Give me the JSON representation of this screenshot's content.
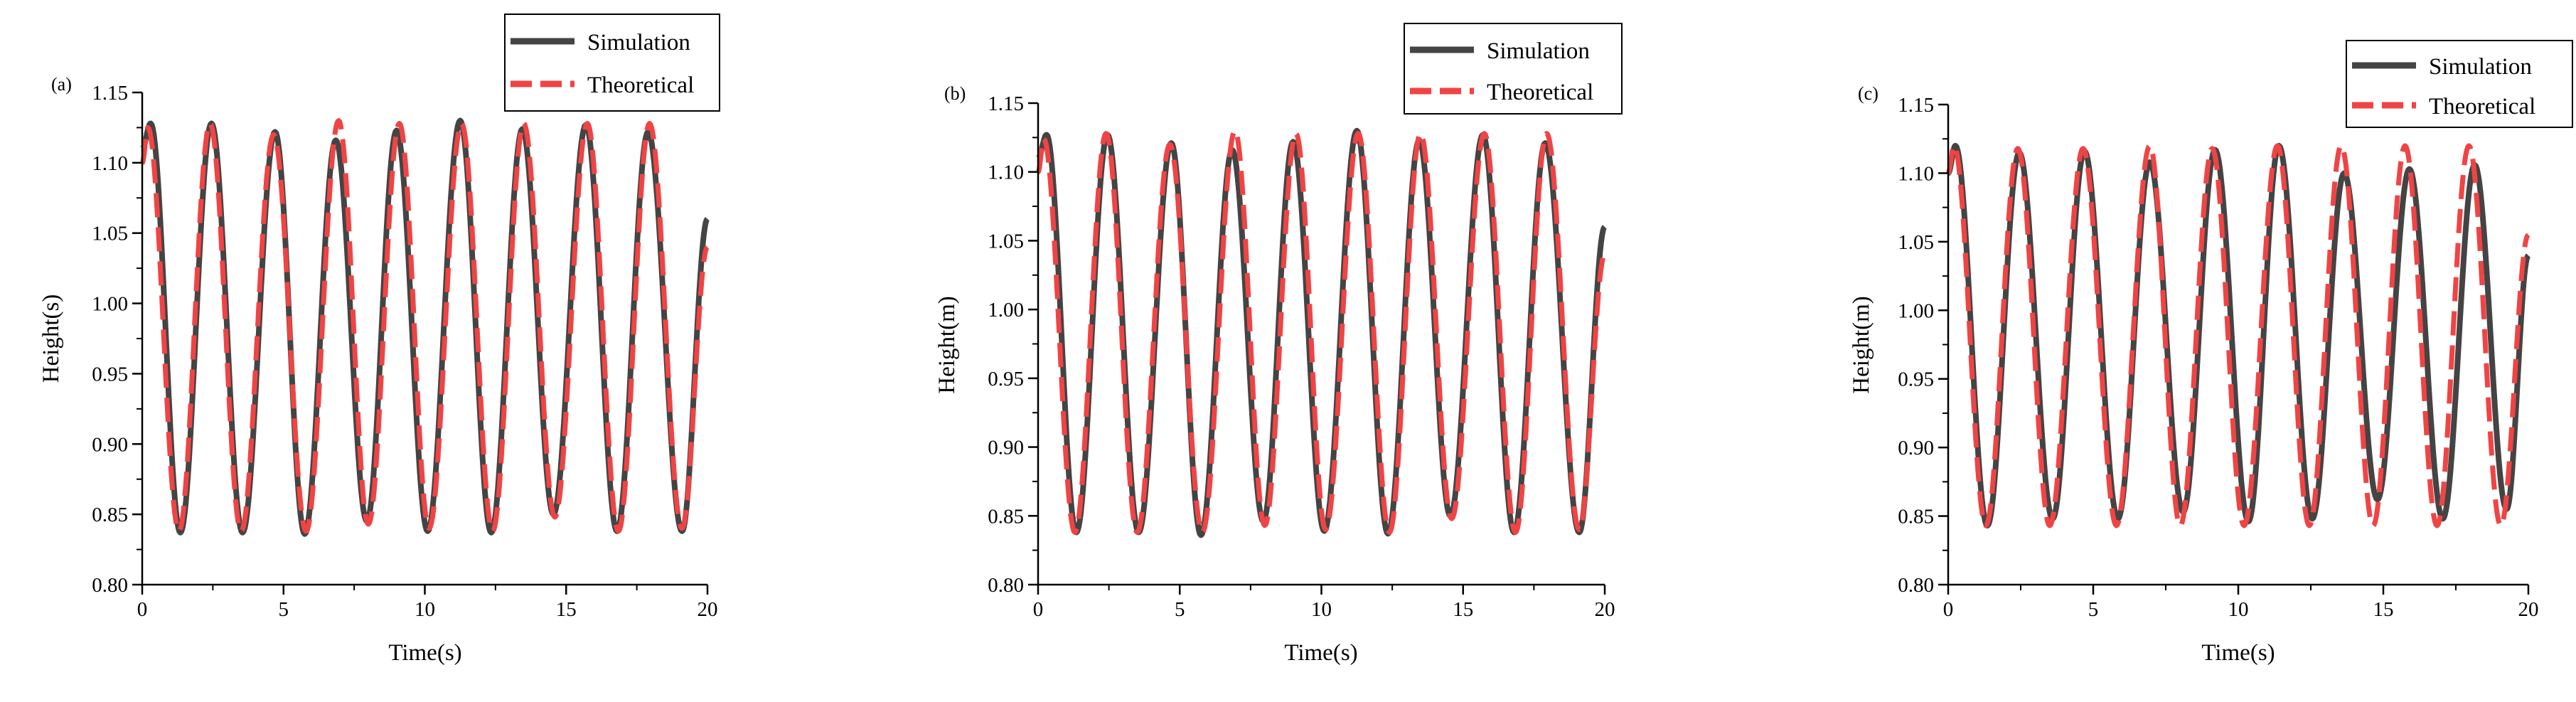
{
  "figure": {
    "series_names": [
      "Simulation",
      "Theoretical"
    ],
    "colors": {
      "simulation": "#444444",
      "theoretical": "#f04444",
      "axis": "#000000",
      "background": "#ffffff"
    }
  },
  "chart_data": [
    {
      "type": "line",
      "panel_label": "(a)",
      "title": "",
      "xlabel": "Time(s)",
      "ylabel": "Height(s)",
      "xlim": [
        0,
        20
      ],
      "ylim": [
        0.8,
        1.15
      ],
      "xticks": [
        0,
        5,
        10,
        15,
        20
      ],
      "yticks": [
        0.8,
        0.85,
        0.9,
        0.95,
        1.0,
        1.05,
        1.1,
        1.15
      ],
      "xticklabels": [
        "0",
        "5",
        "10",
        "15",
        "20"
      ],
      "yticklabels": [
        "0.80",
        "0.85",
        "0.90",
        "0.95",
        "1.00",
        "1.05",
        "1.10",
        "1.15"
      ],
      "legend": {
        "position": "top-right",
        "entries": [
          "Simulation",
          "Theoretical"
        ]
      },
      "grid": false,
      "series": [
        {
          "name": "Simulation",
          "style": "solid",
          "color": "#444444",
          "x": [
            0.0,
            0.3,
            1.35,
            2.45,
            3.55,
            4.7,
            5.75,
            6.85,
            7.95,
            9.0,
            10.1,
            11.25,
            12.35,
            13.45,
            14.55,
            15.7,
            16.8,
            17.9,
            19.1,
            20.0
          ],
          "y": [
            1.11,
            1.128,
            0.837,
            1.128,
            0.837,
            1.122,
            0.836,
            1.116,
            0.845,
            1.123,
            0.838,
            1.13,
            0.837,
            1.124,
            0.85,
            1.127,
            0.838,
            1.122,
            0.838,
            1.06
          ]
        },
        {
          "name": "Theoretical",
          "style": "dashed",
          "color": "#f04444",
          "x": [
            0.0,
            0.2,
            1.3,
            2.4,
            3.5,
            4.65,
            5.8,
            6.95,
            8.0,
            9.1,
            10.15,
            11.3,
            12.4,
            13.5,
            14.6,
            15.75,
            16.85,
            17.95,
            19.1,
            20.0
          ],
          "y": [
            1.1,
            1.125,
            0.838,
            1.128,
            0.838,
            1.12,
            0.838,
            1.13,
            0.843,
            1.128,
            0.84,
            1.128,
            0.838,
            1.128,
            0.848,
            1.128,
            0.838,
            1.128,
            0.84,
            1.04
          ]
        }
      ]
    },
    {
      "type": "line",
      "panel_label": "(b)",
      "title": "",
      "xlabel": "Time(s)",
      "ylabel": "Height(m)",
      "xlim": [
        0,
        20
      ],
      "ylim": [
        0.8,
        1.15
      ],
      "xticks": [
        0,
        5,
        10,
        15,
        20
      ],
      "yticks": [
        0.8,
        0.85,
        0.9,
        0.95,
        1.0,
        1.05,
        1.1,
        1.15
      ],
      "xticklabels": [
        "0",
        "5",
        "10",
        "15",
        "20"
      ],
      "yticklabels": [
        "0.80",
        "0.85",
        "0.90",
        "0.95",
        "1.00",
        "1.05",
        "1.10",
        "1.15"
      ],
      "legend": {
        "position": "top-right",
        "entries": [
          "Simulation",
          "Theoretical"
        ]
      },
      "grid": false,
      "series": [
        {
          "name": "Simulation",
          "style": "solid",
          "color": "#444444",
          "x": [
            0.0,
            0.3,
            1.35,
            2.45,
            3.55,
            4.7,
            5.75,
            6.85,
            7.95,
            9.0,
            10.1,
            11.25,
            12.35,
            13.45,
            14.55,
            15.7,
            16.8,
            17.9,
            19.1,
            20.0
          ],
          "y": [
            1.11,
            1.127,
            0.838,
            1.127,
            0.838,
            1.121,
            0.836,
            1.116,
            0.846,
            1.122,
            0.839,
            1.13,
            0.837,
            1.123,
            0.85,
            1.127,
            0.838,
            1.121,
            0.838,
            1.06
          ]
        },
        {
          "name": "Theoretical",
          "style": "dashed",
          "color": "#f04444",
          "x": [
            0.0,
            0.2,
            1.3,
            2.4,
            3.5,
            4.65,
            5.8,
            6.95,
            8.0,
            9.1,
            10.15,
            11.3,
            12.4,
            13.5,
            14.6,
            15.75,
            16.85,
            17.95,
            19.1,
            20.0
          ],
          "y": [
            1.1,
            1.124,
            0.838,
            1.128,
            0.838,
            1.12,
            0.838,
            1.13,
            0.843,
            1.128,
            0.84,
            1.128,
            0.838,
            1.128,
            0.848,
            1.128,
            0.838,
            1.128,
            0.84,
            1.04
          ]
        }
      ]
    },
    {
      "type": "line",
      "panel_label": "(c)",
      "title": "",
      "xlabel": "Time(s)",
      "ylabel": "Height(m)",
      "xlim": [
        0,
        20
      ],
      "ylim": [
        0.8,
        1.15
      ],
      "xticks": [
        0,
        5,
        10,
        15,
        20
      ],
      "yticks": [
        0.8,
        0.85,
        0.9,
        0.95,
        1.0,
        1.05,
        1.1,
        1.15
      ],
      "xticklabels": [
        "0",
        "5",
        "10",
        "15",
        "20"
      ],
      "yticklabels": [
        "0.80",
        "0.85",
        "0.90",
        "0.95",
        "1.00",
        "1.05",
        "1.10",
        "1.15"
      ],
      "legend": {
        "position": "top-right",
        "entries": [
          "Simulation",
          "Theoretical"
        ]
      },
      "grid": false,
      "series": [
        {
          "name": "Simulation",
          "style": "solid",
          "color": "#444444",
          "x": [
            0.0,
            0.25,
            1.35,
            2.45,
            3.6,
            4.7,
            5.85,
            6.95,
            8.1,
            9.2,
            10.35,
            11.4,
            12.55,
            13.65,
            14.8,
            15.9,
            17.05,
            18.15,
            19.25,
            20.0
          ],
          "y": [
            1.1,
            1.12,
            0.843,
            1.115,
            0.848,
            1.116,
            0.848,
            1.108,
            0.853,
            1.117,
            0.846,
            1.12,
            0.848,
            1.1,
            0.862,
            1.103,
            0.848,
            1.106,
            0.855,
            1.04
          ]
        },
        {
          "name": "Theoretical",
          "style": "dashed",
          "color": "#f04444",
          "x": [
            0.0,
            0.2,
            1.3,
            2.4,
            3.5,
            4.65,
            5.8,
            6.95,
            8.0,
            9.1,
            10.2,
            11.35,
            12.45,
            13.55,
            14.65,
            15.75,
            16.85,
            17.95,
            19.05,
            20.0
          ],
          "y": [
            1.1,
            1.12,
            0.843,
            1.118,
            0.843,
            1.118,
            0.843,
            1.12,
            0.843,
            1.118,
            0.843,
            1.12,
            0.843,
            1.12,
            0.843,
            1.12,
            0.843,
            1.12,
            0.843,
            1.055
          ]
        }
      ]
    }
  ]
}
